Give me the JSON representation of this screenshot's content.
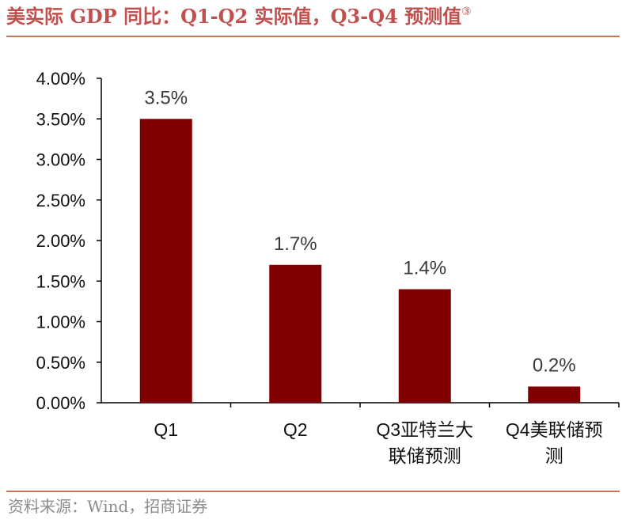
{
  "title": "美实际 GDP 同比：Q1-Q2 实际值，Q3-Q4 预测值",
  "title_note_mark": "③",
  "source": "资料来源：Wind，招商证券",
  "chart_data": {
    "type": "bar",
    "categories": [
      [
        "Q1"
      ],
      [
        "Q2"
      ],
      [
        "Q3亚特兰大",
        "联储预测"
      ],
      [
        "Q4美联储预",
        "测"
      ]
    ],
    "values": [
      3.5,
      1.7,
      1.4,
      0.2
    ],
    "data_labels": [
      "3.5%",
      "1.7%",
      "1.4%",
      "0.2%"
    ],
    "ylim": [
      0,
      4
    ],
    "yticks": [
      0,
      0.5,
      1,
      1.5,
      2,
      2.5,
      3,
      3.5,
      4
    ],
    "ytick_labels": [
      "0.00%",
      "0.50%",
      "1.00%",
      "1.50%",
      "2.00%",
      "2.50%",
      "3.00%",
      "3.50%",
      "4.00%"
    ],
    "xlabel": "",
    "ylabel": "",
    "grid": false,
    "colors": {
      "bar": "#800000",
      "axis": "#000000"
    }
  }
}
